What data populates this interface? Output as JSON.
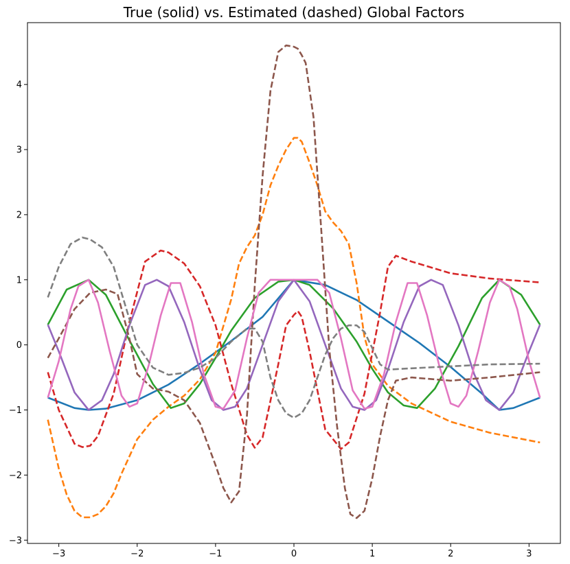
{
  "chart_data": {
    "type": "line",
    "title": "True (solid) vs. Estimated (dashed) Global Factors",
    "xlabel": "",
    "ylabel": "",
    "xlim": [
      -3.4,
      3.4
    ],
    "ylim": [
      -3.05,
      4.95
    ],
    "grid": false,
    "legend": "none",
    "xticks": [
      -3,
      -2,
      -1,
      0,
      1,
      2,
      3
    ],
    "xtick_labels": [
      "−3",
      "−2",
      "−1",
      "0",
      "1",
      "2",
      "3"
    ],
    "yticks": [
      -3,
      -2,
      -1,
      0,
      1,
      2,
      3,
      4
    ],
    "ytick_labels": [
      "−3",
      "−2",
      "−1",
      "0",
      "1",
      "2",
      "3",
      "4"
    ],
    "series": [
      {
        "color": "#1f77b4",
        "style": "solid",
        "x": [
          -3.14,
          -2.8,
          -2.62,
          -2.4,
          -2.0,
          -1.6,
          -1.2,
          -0.8,
          -0.4,
          0.0,
          0.4,
          0.8,
          1.2,
          1.6,
          2.0,
          2.4,
          2.62,
          2.8,
          3.14
        ],
        "y": [
          -0.81,
          -0.97,
          -1.0,
          -0.98,
          -0.85,
          -0.61,
          -0.29,
          0.06,
          0.43,
          1.0,
          0.92,
          0.69,
          0.36,
          0.03,
          -0.34,
          -0.75,
          -1.0,
          -0.97,
          -0.81
        ]
      },
      {
        "color": "#ff7f0e",
        "style": "dashed",
        "x": [
          -3.14,
          -3.0,
          -2.9,
          -2.8,
          -2.7,
          -2.6,
          -2.5,
          -2.4,
          -2.3,
          -2.2,
          -2.0,
          -1.8,
          -1.6,
          -1.4,
          -1.2,
          -1.0,
          -0.8,
          -0.7,
          -0.6,
          -0.5,
          -0.4,
          -0.3,
          -0.2,
          -0.1,
          0.0,
          0.05,
          0.1,
          0.2,
          0.3,
          0.4,
          0.5,
          0.6,
          0.7,
          0.8,
          0.9,
          1.0,
          1.2,
          1.5,
          2.0,
          2.5,
          3.14
        ],
        "y": [
          -1.15,
          -1.9,
          -2.3,
          -2.55,
          -2.65,
          -2.65,
          -2.6,
          -2.48,
          -2.28,
          -1.98,
          -1.45,
          -1.15,
          -0.95,
          -0.78,
          -0.53,
          -0.12,
          0.7,
          1.25,
          1.5,
          1.68,
          2.0,
          2.45,
          2.75,
          3.0,
          3.18,
          3.18,
          3.12,
          2.8,
          2.45,
          2.05,
          1.88,
          1.75,
          1.55,
          0.95,
          0.12,
          -0.3,
          -0.63,
          -0.9,
          -1.18,
          -1.35,
          -1.5
        ]
      },
      {
        "color": "#2ca02c",
        "style": "solid",
        "x": [
          -3.14,
          -2.9,
          -2.62,
          -2.4,
          -2.1,
          -1.8,
          -1.57,
          -1.4,
          -1.2,
          -1.0,
          -0.8,
          -0.5,
          -0.2,
          0.0,
          0.2,
          0.5,
          0.8,
          1.0,
          1.2,
          1.4,
          1.57,
          1.8,
          2.1,
          2.4,
          2.62,
          2.9,
          3.14
        ],
        "y": [
          0.31,
          0.85,
          1.0,
          0.77,
          0.07,
          -0.6,
          -0.97,
          -0.9,
          -0.6,
          -0.2,
          0.22,
          0.72,
          0.97,
          1.0,
          0.92,
          0.56,
          0.05,
          -0.37,
          -0.73,
          -0.93,
          -0.97,
          -0.67,
          -0.02,
          0.72,
          1.0,
          0.77,
          0.31
        ]
      },
      {
        "color": "#d62728",
        "style": "dashed",
        "x": [
          -3.14,
          -3.0,
          -2.8,
          -2.7,
          -2.6,
          -2.5,
          -2.3,
          -2.1,
          -1.9,
          -1.7,
          -1.6,
          -1.4,
          -1.2,
          -1.0,
          -0.8,
          -0.6,
          -0.5,
          -0.4,
          -0.2,
          -0.1,
          0.0,
          0.05,
          0.1,
          0.2,
          0.4,
          0.6,
          0.7,
          0.9,
          1.1,
          1.2,
          1.3,
          1.5,
          2.0,
          2.5,
          3.14
        ],
        "y": [
          -0.42,
          -1.0,
          -1.52,
          -1.57,
          -1.55,
          -1.4,
          -0.75,
          0.35,
          1.28,
          1.45,
          1.42,
          1.25,
          0.9,
          0.3,
          -0.6,
          -1.38,
          -1.58,
          -1.42,
          -0.3,
          0.3,
          0.46,
          0.52,
          0.43,
          -0.1,
          -1.3,
          -1.6,
          -1.5,
          -0.75,
          0.5,
          1.2,
          1.37,
          1.28,
          1.1,
          1.02,
          0.96
        ]
      },
      {
        "color": "#9467bd",
        "style": "solid",
        "x": [
          -3.14,
          -3.0,
          -2.8,
          -2.62,
          -2.45,
          -2.3,
          -2.1,
          -1.9,
          -1.75,
          -1.6,
          -1.4,
          -1.2,
          -1.05,
          -0.9,
          -0.75,
          -0.6,
          -0.4,
          -0.2,
          0.0,
          0.2,
          0.4,
          0.6,
          0.75,
          0.9,
          1.05,
          1.2,
          1.4,
          1.6,
          1.75,
          1.9,
          2.1,
          2.3,
          2.45,
          2.62,
          2.8,
          3.0,
          3.14
        ],
        "y": [
          0.31,
          -0.1,
          -0.73,
          -1.0,
          -0.85,
          -0.45,
          0.3,
          0.92,
          1.0,
          0.9,
          0.35,
          -0.38,
          -0.85,
          -1.0,
          -0.95,
          -0.67,
          0.0,
          0.67,
          1.0,
          0.67,
          0.0,
          -0.67,
          -0.95,
          -1.0,
          -0.85,
          -0.38,
          0.35,
          0.9,
          1.0,
          0.92,
          0.3,
          -0.45,
          -0.85,
          -1.0,
          -0.73,
          -0.1,
          0.31
        ]
      },
      {
        "color": "#8c564b",
        "style": "dashed",
        "x": [
          -3.14,
          -3.0,
          -2.8,
          -2.6,
          -2.4,
          -2.25,
          -2.1,
          -2.0,
          -1.8,
          -1.6,
          -1.4,
          -1.2,
          -1.0,
          -0.9,
          -0.8,
          -0.7,
          -0.6,
          -0.5,
          -0.4,
          -0.3,
          -0.2,
          -0.1,
          0.0,
          0.05,
          0.1,
          0.15,
          0.25,
          0.35,
          0.45,
          0.55,
          0.65,
          0.72,
          0.8,
          0.9,
          1.0,
          1.1,
          1.2,
          1.3,
          1.5,
          2.0,
          2.5,
          3.14
        ],
        "y": [
          -0.2,
          0.1,
          0.55,
          0.8,
          0.85,
          0.78,
          0.1,
          -0.45,
          -0.67,
          -0.72,
          -0.85,
          -1.2,
          -1.85,
          -2.2,
          -2.42,
          -2.25,
          -1.1,
          0.9,
          2.6,
          3.9,
          4.5,
          4.6,
          4.58,
          4.55,
          4.45,
          4.33,
          3.5,
          1.75,
          -0.05,
          -1.25,
          -2.2,
          -2.6,
          -2.66,
          -2.55,
          -2.05,
          -1.4,
          -0.85,
          -0.55,
          -0.5,
          -0.55,
          -0.5,
          -0.42
        ]
      },
      {
        "color": "#e377c2",
        "style": "solid",
        "x": [
          -3.14,
          -3.0,
          -2.85,
          -2.75,
          -2.62,
          -2.5,
          -2.35,
          -2.2,
          -2.1,
          -2.0,
          -1.85,
          -1.7,
          -1.57,
          -1.45,
          -1.3,
          -1.15,
          -1.0,
          -0.9,
          -0.75,
          -0.6,
          -0.45,
          -0.3,
          -0.15,
          0.0,
          0.15,
          0.3,
          0.45,
          0.6,
          0.75,
          0.9,
          1.0,
          1.15,
          1.3,
          1.45,
          1.57,
          1.7,
          1.85,
          2.0,
          2.1,
          2.2,
          2.35,
          2.5,
          2.62,
          2.75,
          2.85,
          3.0,
          3.14
        ],
        "y": [
          -0.81,
          -0.25,
          0.55,
          0.9,
          1.0,
          0.65,
          -0.1,
          -0.78,
          -0.95,
          -0.9,
          -0.3,
          0.45,
          0.95,
          0.95,
          0.35,
          -0.45,
          -0.95,
          -0.98,
          -0.7,
          0.1,
          0.8,
          1.0,
          1.0,
          1.0,
          1.0,
          1.0,
          0.8,
          0.1,
          -0.7,
          -0.98,
          -0.95,
          -0.45,
          0.35,
          0.95,
          0.95,
          0.45,
          -0.3,
          -0.9,
          -0.95,
          -0.78,
          -0.1,
          0.65,
          1.0,
          0.9,
          0.55,
          -0.25,
          -0.81
        ]
      },
      {
        "color": "#7f7f7f",
        "style": "dashed",
        "x": [
          -3.14,
          -3.0,
          -2.85,
          -2.7,
          -2.6,
          -2.45,
          -2.3,
          -2.15,
          -2.0,
          -1.8,
          -1.6,
          -1.4,
          -1.2,
          -1.0,
          -0.8,
          -0.6,
          -0.5,
          -0.4,
          -0.3,
          -0.2,
          -0.1,
          0.0,
          0.1,
          0.2,
          0.3,
          0.4,
          0.5,
          0.6,
          0.7,
          0.8,
          0.9,
          1.0,
          1.1,
          1.2,
          1.5,
          2.0,
          2.5,
          3.14
        ],
        "y": [
          0.73,
          1.2,
          1.55,
          1.65,
          1.62,
          1.5,
          1.2,
          0.6,
          0.0,
          -0.35,
          -0.46,
          -0.43,
          -0.35,
          -0.2,
          0.05,
          0.25,
          0.25,
          0.05,
          -0.5,
          -0.85,
          -1.05,
          -1.12,
          -1.05,
          -0.85,
          -0.5,
          -0.15,
          0.1,
          0.25,
          0.3,
          0.3,
          0.2,
          -0.05,
          -0.3,
          -0.38,
          -0.36,
          -0.33,
          -0.3,
          -0.29
        ]
      }
    ]
  }
}
